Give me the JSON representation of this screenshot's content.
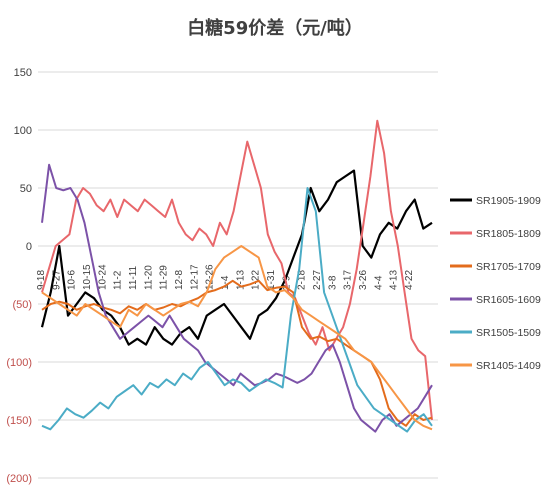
{
  "chart_data": {
    "type": "line",
    "title": "白糖59价差（元/吨）",
    "xlabel": "",
    "ylabel": "",
    "ylim": [
      -200,
      150
    ],
    "yticks": [
      150,
      100,
      50,
      0,
      -50,
      -100,
      -150,
      -200
    ],
    "ytick_labels": [
      "150",
      "100",
      "50",
      "0",
      "(50)",
      "(100)",
      "(150)",
      "(200)"
    ],
    "x_tick_labels": [
      "9-18",
      "9-27",
      "10-6",
      "10-15",
      "10-24",
      "11-2",
      "11-11",
      "11-20",
      "11-29",
      "12-8",
      "12-17",
      "12-26",
      "1-4",
      "1-13",
      "1-22",
      "1-31",
      "2-9",
      "2-18",
      "2-27",
      "3-8",
      "3-17",
      "3-26",
      "4-4",
      "4-13",
      "4-22"
    ],
    "grid": true,
    "legend_position": "right",
    "series": [
      {
        "name": "SR1905-1909",
        "color": "#000000",
        "values": [
          -70,
          -40,
          0,
          -60,
          -50,
          -40,
          -45,
          -55,
          -60,
          -70,
          -85,
          -80,
          -85,
          -70,
          -80,
          -85,
          -75,
          -70,
          -80,
          -60,
          -55,
          -50,
          -60,
          -70,
          -80,
          -60,
          -55,
          -45,
          -30,
          -10,
          10,
          50,
          30,
          40,
          55,
          60,
          65,
          0,
          -10,
          10,
          20,
          15,
          30,
          40,
          15,
          20
        ]
      },
      {
        "name": "SR1805-1809",
        "color": "#e8676b",
        "values": [
          -40,
          -20,
          0,
          5,
          10,
          40,
          50,
          45,
          35,
          30,
          40,
          25,
          40,
          35,
          30,
          40,
          35,
          30,
          25,
          40,
          20,
          10,
          5,
          15,
          10,
          0,
          20,
          10,
          30,
          60,
          90,
          70,
          50,
          10,
          -5,
          -15,
          -40,
          -45,
          -60,
          -75,
          -85,
          -70,
          -90,
          -80,
          -70,
          -50,
          -20,
          20,
          60,
          108,
          80,
          30,
          0,
          -40,
          -80,
          -90,
          -95,
          -150
        ]
      },
      {
        "name": "SR1705-1709",
        "color": "#e36c1c",
        "values": [
          -55,
          -50,
          -48,
          -50,
          -55,
          -52,
          -50,
          -53,
          -55,
          -58,
          -52,
          -55,
          -50,
          -55,
          -53,
          -50,
          -52,
          -48,
          -45,
          -40,
          -38,
          -35,
          -30,
          -35,
          -33,
          -30,
          -38,
          -36,
          -35,
          -40,
          -70,
          -80,
          -78,
          -82,
          -80,
          -85,
          -90,
          -95,
          -100,
          -115,
          -140,
          -150,
          -155,
          -145,
          -150,
          -148
        ]
      },
      {
        "name": "SR1605-1609",
        "color": "#7c52a8",
        "values": [
          20,
          70,
          50,
          48,
          50,
          40,
          20,
          -10,
          -40,
          -60,
          -70,
          -80,
          -75,
          -70,
          -65,
          -60,
          -65,
          -70,
          -60,
          -70,
          -80,
          -85,
          -90,
          -100,
          -105,
          -110,
          -115,
          -120,
          -110,
          -115,
          -120,
          -118,
          -115,
          -110,
          -112,
          -115,
          -118,
          -115,
          -110,
          -100,
          -90,
          -85,
          -100,
          -120,
          -140,
          -150,
          -155,
          -160,
          -150,
          -145,
          -155,
          -150,
          -145,
          -140,
          -130,
          -120
        ]
      },
      {
        "name": "SR1505-1509",
        "color": "#4bacc6",
        "values": [
          -155,
          -158,
          -150,
          -140,
          -145,
          -148,
          -142,
          -135,
          -140,
          -130,
          -125,
          -120,
          -128,
          -118,
          -122,
          -115,
          -120,
          -110,
          -115,
          -105,
          -100,
          -110,
          -120,
          -115,
          -118,
          -125,
          -120,
          -115,
          -118,
          -122,
          -60,
          -20,
          50,
          30,
          -40,
          -60,
          -80,
          -100,
          -120,
          -130,
          -140,
          -145,
          -150,
          -155,
          -160,
          -150,
          -145,
          -155
        ]
      },
      {
        "name": "SR1405-1409",
        "color": "#f79646",
        "values": [
          -40,
          -45,
          -50,
          -55,
          -60,
          -50,
          -55,
          -60,
          -65,
          -70,
          -55,
          -60,
          -50,
          -55,
          -60,
          -55,
          -50,
          -48,
          -52,
          -40,
          -20,
          -10,
          -5,
          0,
          -5,
          -10,
          -35,
          -40,
          -38,
          -45,
          -55,
          -60,
          -65,
          -70,
          -75,
          -80,
          -90,
          -95,
          -100,
          -110,
          -120,
          -130,
          -140,
          -150,
          -155,
          -158
        ]
      }
    ]
  }
}
